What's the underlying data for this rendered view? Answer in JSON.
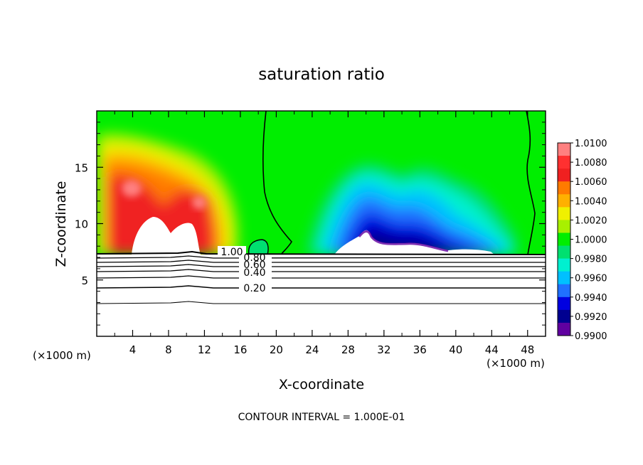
{
  "chart_data": {
    "type": "heatmap",
    "title": "saturation ratio",
    "xlabel": "X-coordinate",
    "ylabel": "Z-coordinate",
    "x_unit_label_left": "(×1000 m)",
    "x_unit_label_right": "(×1000 m)",
    "xlim": [
      0,
      50
    ],
    "ylim": [
      0,
      20
    ],
    "x_ticks": [
      "4",
      "8",
      "12",
      "16",
      "20",
      "24",
      "28",
      "32",
      "36",
      "40",
      "44",
      "48"
    ],
    "y_ticks": [
      "5",
      "10",
      "15"
    ],
    "x_tick_values": [
      4,
      8,
      12,
      16,
      20,
      24,
      28,
      32,
      36,
      40,
      44,
      48
    ],
    "y_tick_values": [
      5,
      10,
      15
    ],
    "colorbar": {
      "levels": [
        "1.0100",
        "1.0080",
        "1.0060",
        "1.0040",
        "1.0020",
        "1.0000",
        "0.9980",
        "0.9960",
        "0.9940",
        "0.9920",
        "0.9900"
      ],
      "colors": [
        "#ff8080",
        "#ff3030",
        "#f02020",
        "#ff7a00",
        "#ffb000",
        "#f0f000",
        "#a8f000",
        "#00ee00",
        "#00e070",
        "#00f0d0",
        "#00c0ff",
        "#2070ff",
        "#0000e0",
        "#000090",
        "#6000a0"
      ]
    },
    "contour_labels": [
      "1.00",
      "0.80",
      "0.60",
      "0.40",
      "0.20"
    ],
    "contour_label_values": [
      1.0,
      0.8,
      0.6,
      0.4,
      0.2
    ],
    "note": "CONTOUR INTERVAL = 1.000E-01"
  }
}
